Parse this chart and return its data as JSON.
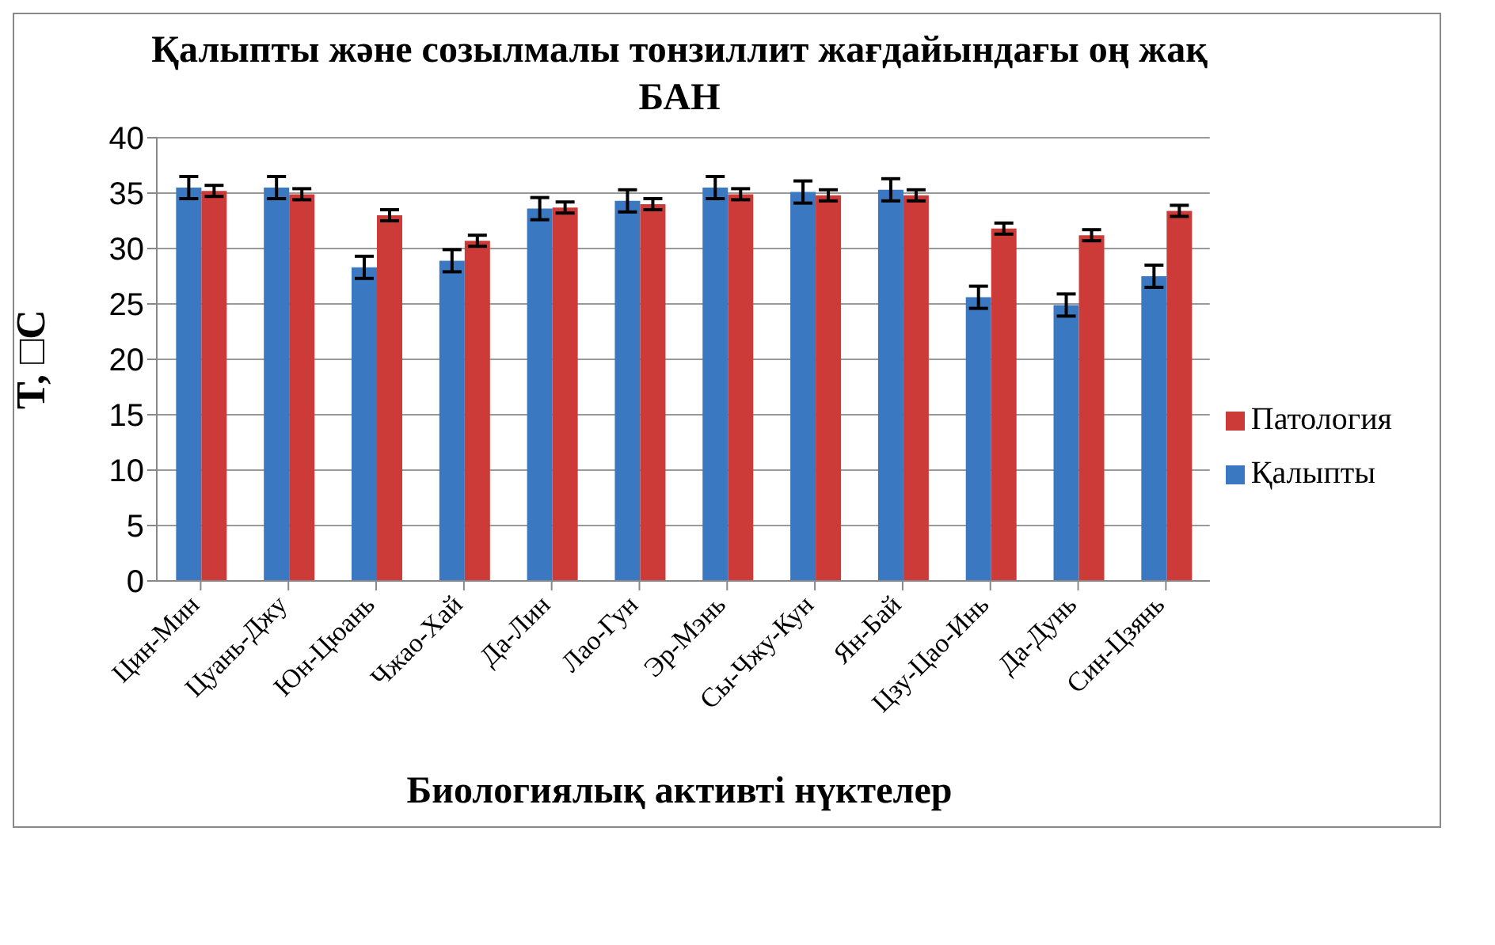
{
  "chart_data": {
    "type": "bar",
    "title": "Қалыпты және созылмалы тонзиллит жағдайындағы оң жақ БАН",
    "xlabel": "Биологиялық активті нүктелер",
    "ylabel": "T, □C",
    "categories": [
      "Цин-Мин",
      "Цуань-Джу",
      "Юн-Цюань",
      "Чжао-Хай",
      "Да-Лин",
      "Лао-Гун",
      "Эр-Мэнь",
      "Сы-Чжу-Кун",
      "Ян-Бай",
      "Цзу-Цао-Инь",
      "Да-Дунь",
      "Син-Цзянь"
    ],
    "series": [
      {
        "name": "Қалыпты",
        "color": "#3a78c2",
        "values": [
          35.5,
          35.5,
          28.3,
          28.9,
          33.6,
          34.3,
          35.5,
          35.1,
          35.3,
          25.6,
          24.9,
          27.5
        ],
        "errors": [
          1,
          1,
          1,
          1,
          1,
          1,
          1,
          1,
          1,
          1,
          1,
          1
        ]
      },
      {
        "name": "Патология",
        "color": "#cc3b38",
        "values": [
          35.2,
          34.9,
          33.0,
          30.7,
          33.7,
          34.0,
          34.9,
          34.8,
          34.8,
          31.8,
          31.2,
          33.4
        ],
        "errors": [
          0.5,
          0.5,
          0.5,
          0.5,
          0.5,
          0.5,
          0.5,
          0.5,
          0.5,
          0.5,
          0.5,
          0.5
        ]
      }
    ],
    "ylim": [
      0,
      40
    ],
    "yticks": [
      0,
      5,
      10,
      15,
      20,
      25,
      30,
      35,
      40
    ],
    "grid": "y",
    "legend": "right"
  }
}
